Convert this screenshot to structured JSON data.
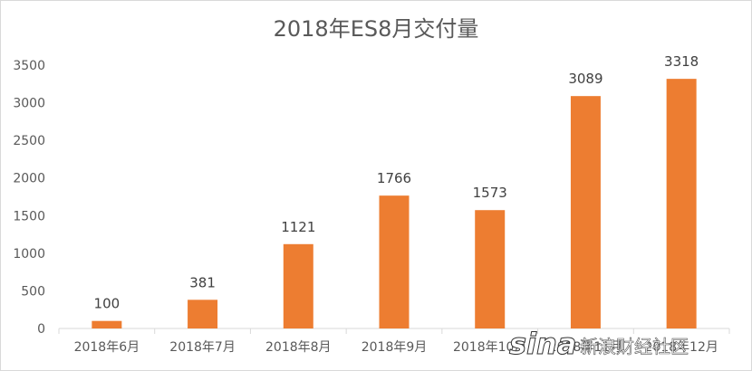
{
  "chart_data": {
    "type": "bar",
    "title": "2018年ES8月交付量",
    "categories": [
      "2018年6月",
      "2018年7月",
      "2018年8月",
      "2018年9月",
      "2018年10月",
      "2018年11月",
      "2018年12月"
    ],
    "values": [
      100,
      381,
      1121,
      1766,
      1573,
      3089,
      3318
    ],
    "ylim": [
      0,
      3500
    ],
    "yticks": [
      0,
      500,
      1000,
      1500,
      2000,
      2500,
      3000,
      3500
    ],
    "grid": false,
    "legend": "none",
    "bar_color": "#ED7D31",
    "axis_color": "#d9d9d9"
  },
  "watermark": {
    "logo": "sina",
    "text": "新浪财经社区"
  }
}
